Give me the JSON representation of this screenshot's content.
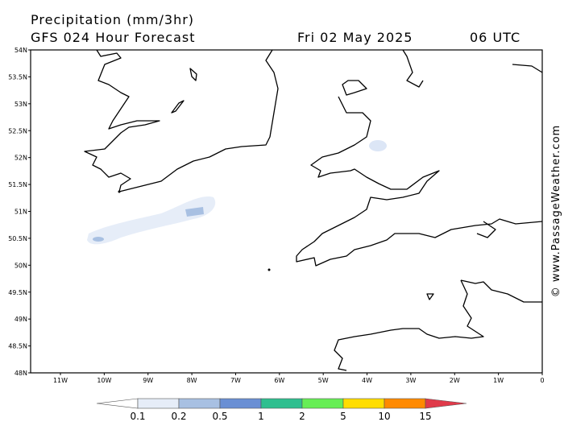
{
  "header": {
    "title": "Precipitation (mm/3hr)",
    "subtitle": "GFS 024 Hour Forecast",
    "date": "Fri 02 May 2025",
    "time": "06 UTC"
  },
  "axes": {
    "lat_labels": [
      "54N",
      "53.5N",
      "53N",
      "52.5N",
      "52N",
      "51.5N",
      "51N",
      "50.5N",
      "50N",
      "49.5N",
      "49N",
      "48.5N",
      "48N"
    ],
    "lon_labels": [
      "11W",
      "10W",
      "9W",
      "8W",
      "7W",
      "6W",
      "5W",
      "4W",
      "3W",
      "2W",
      "1W",
      "0"
    ]
  },
  "legend": {
    "labels": [
      "0.1",
      "0.2",
      "0.5",
      "1",
      "2",
      "5",
      "10",
      "15"
    ],
    "colors": [
      "#ffffff",
      "#e6edf8",
      "#a8c0e2",
      "#6a8fd4",
      "#2fbf8f",
      "#66ee55",
      "#ffdd00",
      "#ff8a00",
      "#e03a4a"
    ]
  },
  "watermark": "© www.PassageWeather.com"
}
